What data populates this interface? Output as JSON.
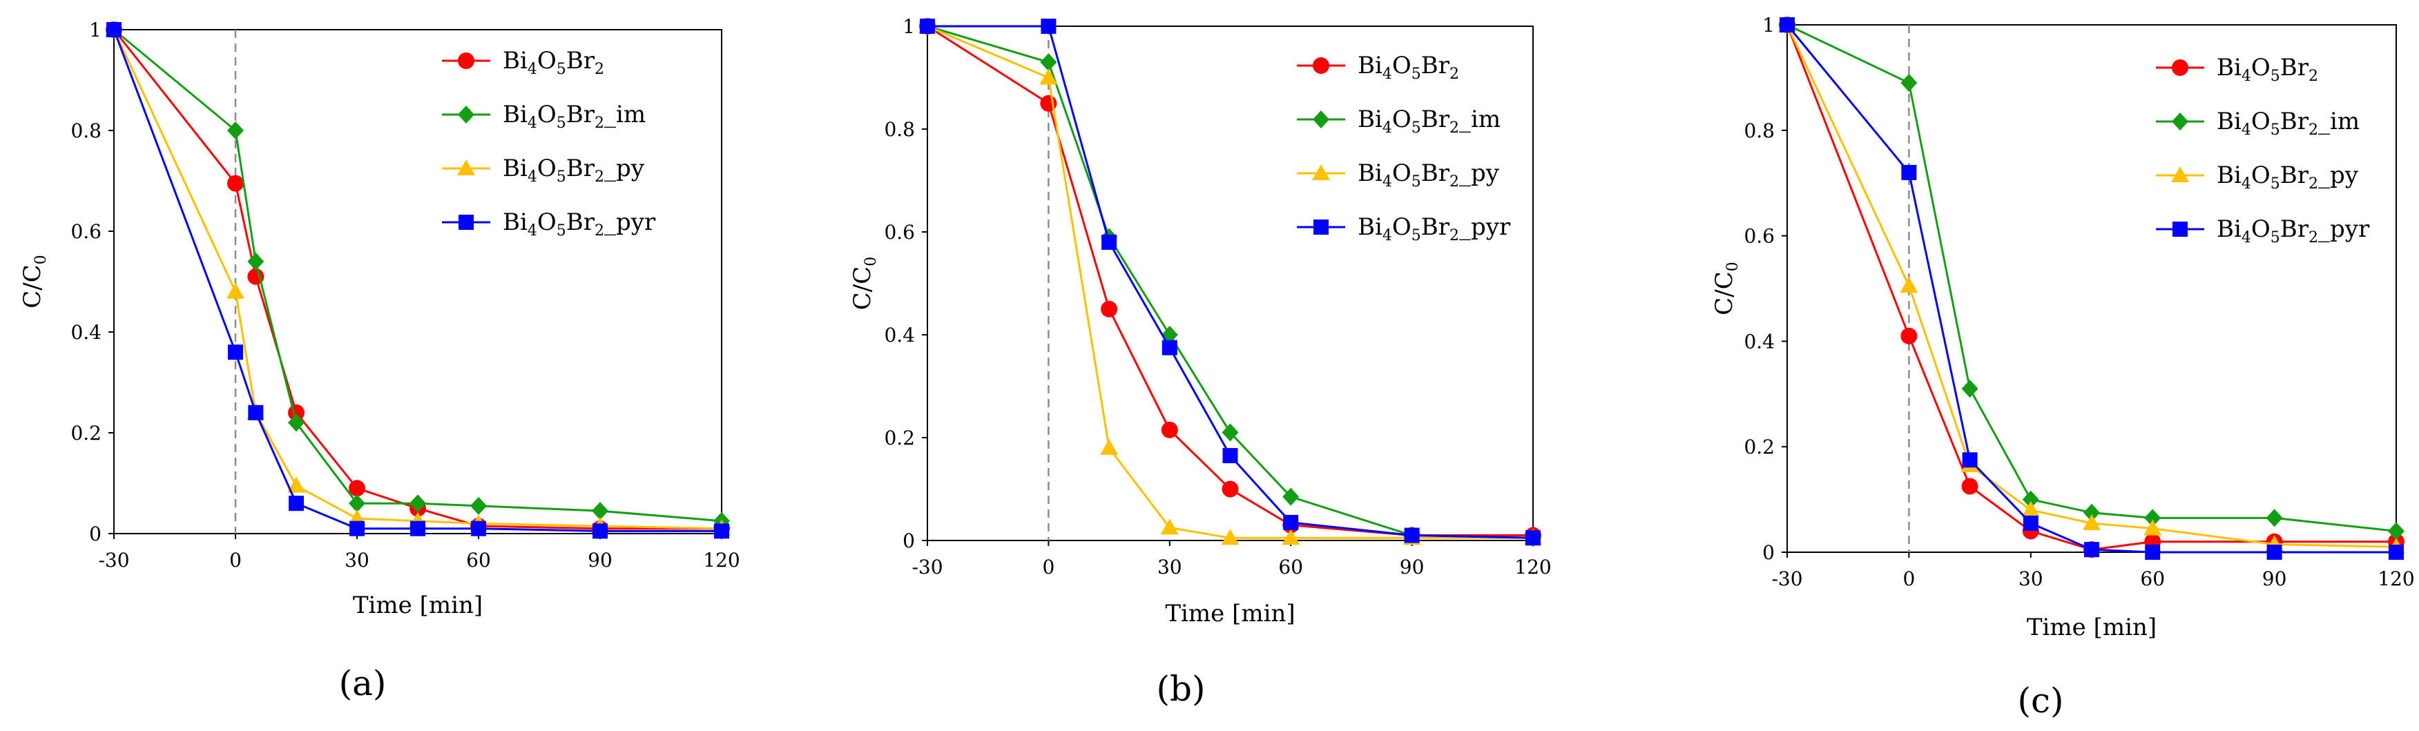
{
  "chart_data": [
    {
      "type": "line",
      "panel_label": "(a)",
      "xlabel": "Time [min]",
      "ylabel": "C/C0",
      "xlim": [
        -30,
        120
      ],
      "ylim": [
        0,
        1
      ],
      "xticks": [
        -30,
        0,
        30,
        60,
        90,
        120
      ],
      "yticks": [
        0,
        0.2,
        0.4,
        0.6,
        0.8,
        1
      ],
      "ytick_labels": [
        "0",
        "0.2",
        "0.4",
        "0.6",
        "0.8",
        "1"
      ],
      "vline_x": 0,
      "legend_position": "top-right",
      "series": [
        {
          "name": "Bi4O5Br2",
          "color": "#ff0000",
          "marker": "circle",
          "x": [
            -30,
            0,
            5,
            15,
            30,
            45,
            60,
            90,
            120
          ],
          "values": [
            1,
            0.695,
            0.51,
            0.24,
            0.09,
            0.05,
            0.015,
            0.01,
            0.01
          ]
        },
        {
          "name": "Bi4O5Br2_im",
          "color": "#139e13",
          "marker": "diamond",
          "x": [
            -30,
            0,
            5,
            15,
            30,
            45,
            60,
            90,
            120
          ],
          "values": [
            1,
            0.8,
            0.54,
            0.22,
            0.06,
            0.06,
            0.055,
            0.045,
            0.025
          ]
        },
        {
          "name": "Bi4O5Br2_py",
          "color": "#ffc000",
          "marker": "triangle",
          "x": [
            -30,
            0,
            5,
            15,
            30,
            45,
            60,
            90,
            120
          ],
          "values": [
            1,
            0.48,
            0.24,
            0.095,
            0.03,
            0.025,
            0.02,
            0.015,
            0.01
          ]
        },
        {
          "name": "Bi4O5Br2_pyr",
          "color": "#0000ff",
          "marker": "square",
          "x": [
            -30,
            0,
            5,
            15,
            30,
            45,
            60,
            90,
            120
          ],
          "values": [
            1,
            0.36,
            0.24,
            0.06,
            0.01,
            0.01,
            0.01,
            0.005,
            0.005
          ]
        }
      ]
    },
    {
      "type": "line",
      "panel_label": "(b)",
      "xlabel": "Time [min]",
      "ylabel": "C/C0",
      "xlim": [
        -30,
        120
      ],
      "ylim": [
        0,
        1
      ],
      "xticks": [
        -30,
        0,
        30,
        60,
        90,
        120
      ],
      "yticks": [
        0,
        0.2,
        0.4,
        0.6,
        0.8,
        1
      ],
      "ytick_labels": [
        "0",
        "0.2",
        "0.4",
        "0.6",
        "0.8",
        "1"
      ],
      "vline_x": 0,
      "legend_position": "top-right",
      "series": [
        {
          "name": "Bi4O5Br2",
          "color": "#ff0000",
          "marker": "circle",
          "x": [
            -30,
            0,
            15,
            30,
            45,
            60,
            90,
            120
          ],
          "values": [
            1,
            0.85,
            0.45,
            0.215,
            0.1,
            0.03,
            0.01,
            0.01
          ]
        },
        {
          "name": "Bi4O5Br2_im",
          "color": "#139e13",
          "marker": "diamond",
          "x": [
            -30,
            0,
            15,
            30,
            45,
            60,
            90,
            120
          ],
          "values": [
            1,
            0.93,
            0.59,
            0.4,
            0.21,
            0.085,
            0.01,
            0.005
          ]
        },
        {
          "name": "Bi4O5Br2_py",
          "color": "#ffc000",
          "marker": "triangle",
          "x": [
            -30,
            0,
            15,
            30,
            45,
            60,
            90,
            120
          ],
          "values": [
            1,
            0.9,
            0.18,
            0.025,
            0.005,
            0.005,
            0.005,
            0.005
          ]
        },
        {
          "name": "Bi4O5Br2_pyr",
          "color": "#0000ff",
          "marker": "square",
          "x": [
            -30,
            0,
            15,
            30,
            45,
            60,
            90,
            120
          ],
          "values": [
            1,
            1,
            0.58,
            0.375,
            0.165,
            0.035,
            0.01,
            0.005
          ]
        }
      ]
    },
    {
      "type": "line",
      "panel_label": "(c)",
      "xlabel": "Time [min]",
      "ylabel": "C/C0",
      "xlim": [
        -30,
        120
      ],
      "ylim": [
        0,
        1
      ],
      "xticks": [
        -30,
        0,
        30,
        60,
        90,
        120
      ],
      "yticks": [
        0,
        0.2,
        0.4,
        0.6,
        0.8,
        1
      ],
      "ytick_labels": [
        "0",
        "0.2",
        "0.4",
        "0.6",
        "0.8",
        "1"
      ],
      "vline_x": 0,
      "legend_position": "top-right",
      "series": [
        {
          "name": "Bi4O5Br2",
          "color": "#ff0000",
          "marker": "circle",
          "x": [
            -30,
            0,
            15,
            30,
            45,
            60,
            90,
            120
          ],
          "values": [
            1,
            0.41,
            0.125,
            0.04,
            0.005,
            0.02,
            0.02,
            0.02
          ]
        },
        {
          "name": "Bi4O5Br2_im",
          "color": "#139e13",
          "marker": "diamond",
          "x": [
            -30,
            0,
            15,
            30,
            45,
            60,
            90,
            120
          ],
          "values": [
            1,
            0.89,
            0.31,
            0.1,
            0.075,
            0.065,
            0.065,
            0.04
          ]
        },
        {
          "name": "Bi4O5Br2_py",
          "color": "#ffc000",
          "marker": "triangle",
          "x": [
            -30,
            0,
            15,
            30,
            45,
            60,
            90,
            120
          ],
          "values": [
            1,
            0.505,
            0.165,
            0.08,
            0.055,
            0.045,
            0.015,
            0.01
          ]
        },
        {
          "name": "Bi4O5Br2_pyr",
          "color": "#0000ff",
          "marker": "square",
          "x": [
            -30,
            0,
            15,
            30,
            45,
            60,
            90,
            120
          ],
          "values": [
            1,
            0.72,
            0.175,
            0.055,
            0.005,
            0.0,
            0.0,
            0.0
          ]
        }
      ]
    }
  ]
}
